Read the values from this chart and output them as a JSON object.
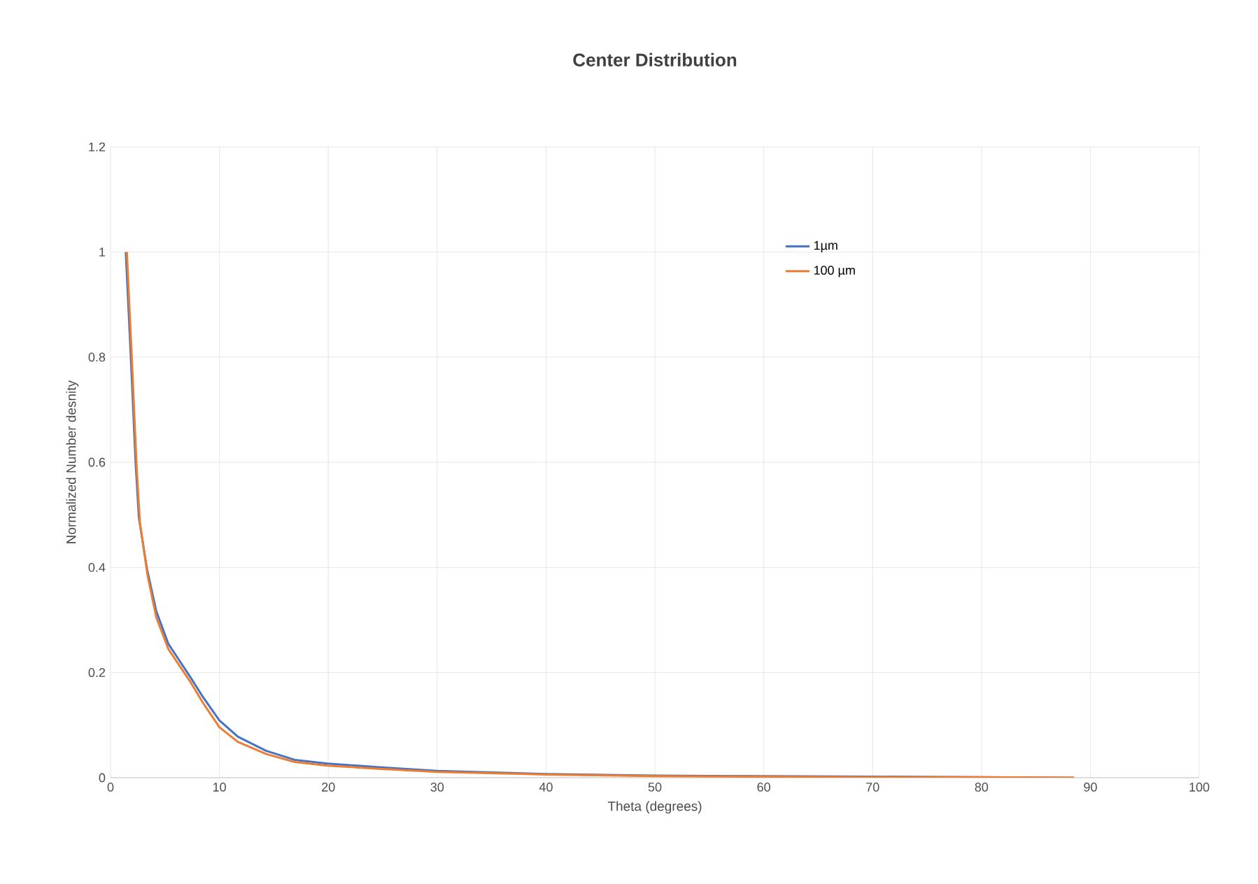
{
  "chart_data": {
    "type": "line",
    "title": "Center Distribution",
    "xlabel": "Theta (degrees)",
    "ylabel": "Normalized Number desnity",
    "xlim": [
      0,
      100
    ],
    "ylim": [
      0,
      1.2
    ],
    "xticks": [
      0,
      10,
      20,
      30,
      40,
      50,
      60,
      70,
      80,
      90,
      100
    ],
    "yticks": [
      0,
      0.2,
      0.4,
      0.6,
      0.8,
      1,
      1.2
    ],
    "grid": true,
    "legend": "top right",
    "marker": "none",
    "line_style": "solid",
    "series": [
      {
        "name": "1µm",
        "color": "#4472c4",
        "x": [
          1.4,
          1.85,
          2.3,
          2.6,
          3.35,
          4.2,
          5.3,
          7.4,
          8.5,
          10,
          11.7,
          14.3,
          16.9,
          19.9,
          24.6,
          30,
          40,
          50,
          60,
          70,
          80,
          88.5
        ],
        "values": [
          1.0,
          0.805,
          0.6,
          0.495,
          0.397,
          0.317,
          0.255,
          0.189,
          0.153,
          0.109,
          0.078,
          0.051,
          0.034,
          0.027,
          0.02,
          0.013,
          0.007,
          0.004,
          0.003,
          0.002,
          null,
          0.0
        ]
      },
      {
        "name": "100 µm",
        "color": "#ed7d31",
        "x": [
          1.5,
          1.95,
          2.4,
          2.7,
          3.4,
          4.2,
          5.3,
          7.4,
          8.5,
          10,
          11.7,
          14.3,
          16.9,
          19.9,
          24.6,
          30,
          40,
          50,
          60,
          70,
          80,
          88.5
        ],
        "values": [
          1.0,
          0.8,
          0.59,
          0.485,
          0.385,
          0.305,
          0.245,
          0.18,
          0.142,
          0.096,
          0.068,
          0.045,
          0.03,
          0.023,
          0.017,
          0.011,
          0.006,
          0.003,
          0.002,
          0.001,
          0.001,
          0.0
        ]
      }
    ]
  }
}
